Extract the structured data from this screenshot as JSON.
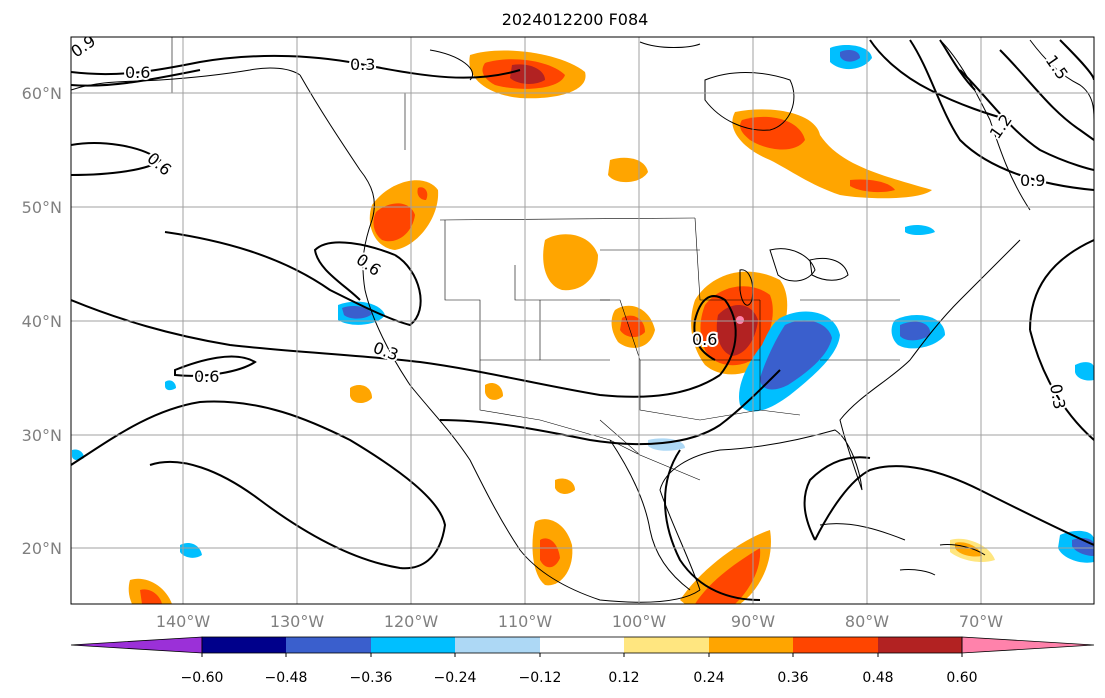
{
  "title": "2024012200 F084",
  "map": {
    "lat_ticks": [
      "60°N",
      "50°N",
      "40°N",
      "30°N",
      "20°N"
    ],
    "lon_ticks": [
      "140°W",
      "130°W",
      "120°W",
      "110°W",
      "100°W",
      "90°W",
      "80°W",
      "70°W"
    ],
    "contour_labels": [
      "0.9",
      "0.6",
      "0.3",
      "0.6",
      "0.6",
      "0.6",
      "0.3",
      "0.6",
      "1.5",
      "1.2",
      "0.9",
      "0.3"
    ]
  },
  "colorbar": {
    "ticks": [
      "−0.60",
      "−0.48",
      "−0.36",
      "−0.24",
      "−0.12",
      "0.12",
      "0.24",
      "0.36",
      "0.48",
      "0.60"
    ],
    "colors": [
      "#9b30d8",
      "#00008b",
      "#3a5fcd",
      "#00bfff",
      "#add8f5",
      "#ffffff",
      "#ffe680",
      "#ffa500",
      "#ff4500",
      "#b22222",
      "#ff82ab"
    ]
  },
  "colors": {
    "grid": "#a0a0a0",
    "tick_label": "#808080",
    "coast": "#000000"
  }
}
